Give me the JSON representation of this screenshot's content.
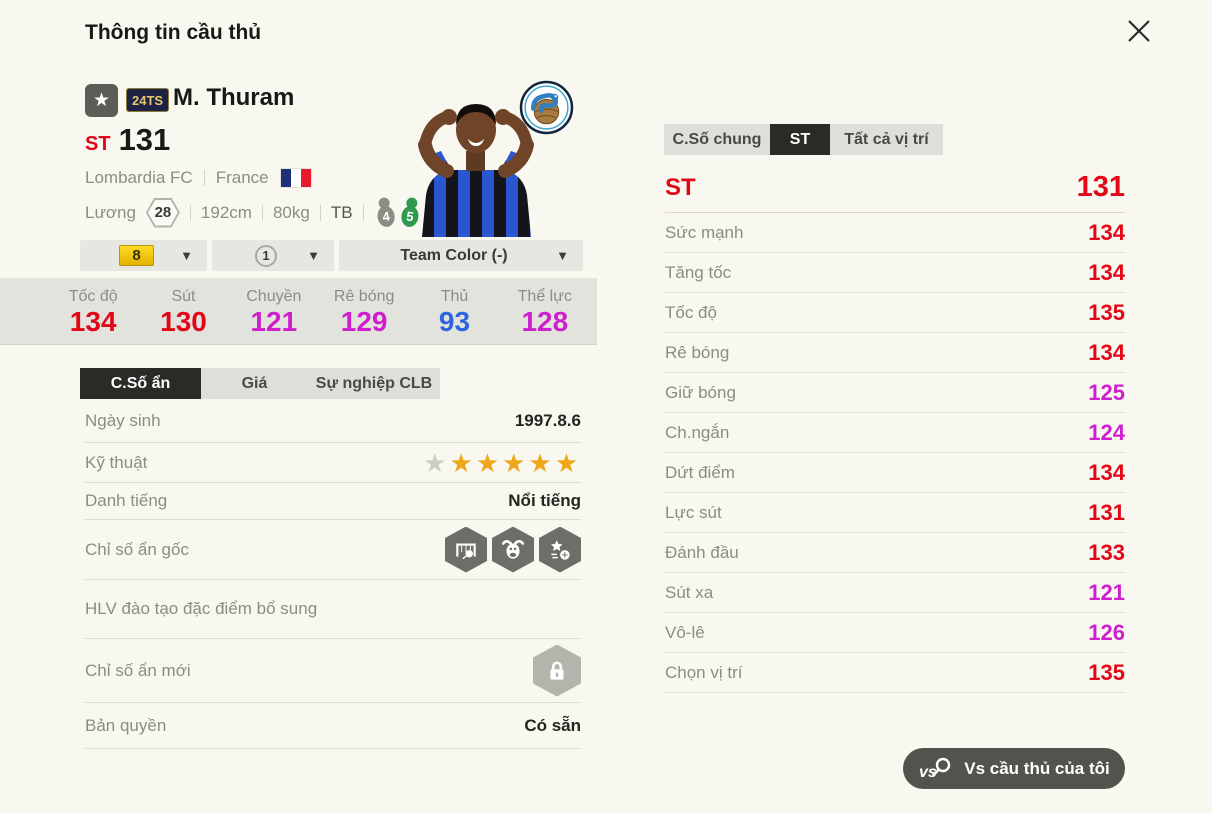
{
  "window": {
    "title": "Thông tin cầu thủ"
  },
  "player": {
    "season_badge": "24TS",
    "name": "M. Thuram",
    "position": "ST",
    "overall": "131",
    "club": "Lombardia FC",
    "nation": "France",
    "salary_label": "Lương",
    "salary_value": "28",
    "height": "192cm",
    "weight": "80kg",
    "foot": "TB",
    "weak_foot_rating": "4",
    "strong_foot_rating": "5"
  },
  "filters": {
    "level": "8",
    "grade": "1",
    "team_color": "Team Color (-)"
  },
  "colors": {
    "stat_high": "#e20617",
    "stat_mid": "#ce1fce",
    "stat_low": "#2e63e2",
    "accent_dark": "#2b2a27"
  },
  "quick_stats": [
    {
      "label": "Tốc độ",
      "value": "134",
      "color": "#e20617"
    },
    {
      "label": "Sút",
      "value": "130",
      "color": "#e20617"
    },
    {
      "label": "Chuyền",
      "value": "121",
      "color": "#ce1fce"
    },
    {
      "label": "Rê bóng",
      "value": "129",
      "color": "#ce1fce"
    },
    {
      "label": "Thủ",
      "value": "93",
      "color": "#2e63e2"
    },
    {
      "label": "Thể lực",
      "value": "128",
      "color": "#ce1fce"
    }
  ],
  "left_tabs": [
    {
      "label": "C.Số ẩn",
      "active": true
    },
    {
      "label": "Giá",
      "active": false
    },
    {
      "label": "Sự nghiệp CLB",
      "active": false
    }
  ],
  "details": {
    "birth": {
      "label": "Ngày sinh",
      "value": "1997.8.6"
    },
    "technique": {
      "label": "Kỹ thuật",
      "gray_stars": 1,
      "gold_stars": 5
    },
    "fame": {
      "label": "Danh tiếng",
      "value": "Nổi tiếng"
    },
    "hidden_origin": {
      "label": "Chỉ số ẩn gốc",
      "icons": [
        "goal-shot-trait-icon",
        "bull-trait-icon",
        "skill-star-trait-icon"
      ]
    },
    "coach": {
      "label": "HLV đào tạo đặc điểm bổ sung"
    },
    "hidden_new": {
      "label": "Chỉ số ẩn mới",
      "icon": "lock-icon"
    },
    "license": {
      "label": "Bản quyền",
      "value": "Có sẵn"
    }
  },
  "right_tabs": [
    {
      "label": "C.Số chung",
      "active": false
    },
    {
      "label": "ST",
      "active": true
    },
    {
      "label": "Tất cả vị trí",
      "active": false
    }
  ],
  "position_stats": {
    "header": {
      "label": "ST",
      "value": "131"
    },
    "rows": [
      {
        "label": "Sức mạnh",
        "value": "134",
        "color": "#e20617"
      },
      {
        "label": "Tăng tốc",
        "value": "134",
        "color": "#e20617"
      },
      {
        "label": "Tốc độ",
        "value": "135",
        "color": "#e20617"
      },
      {
        "label": "Rê bóng",
        "value": "134",
        "color": "#e20617"
      },
      {
        "label": "Giữ bóng",
        "value": "125",
        "color": "#ce1fce"
      },
      {
        "label": "Ch.ngắn",
        "value": "124",
        "color": "#ce1fce"
      },
      {
        "label": "Dứt điểm",
        "value": "134",
        "color": "#e20617"
      },
      {
        "label": "Lực sút",
        "value": "131",
        "color": "#e20617"
      },
      {
        "label": "Đánh đầu",
        "value": "133",
        "color": "#e20617"
      },
      {
        "label": "Sút xa",
        "value": "121",
        "color": "#ce1fce"
      },
      {
        "label": "Vô-lê",
        "value": "126",
        "color": "#ce1fce"
      },
      {
        "label": "Chọn vị trí",
        "value": "135",
        "color": "#e20617"
      }
    ]
  },
  "vs_button": {
    "label": "Vs cầu thủ của tôi"
  }
}
